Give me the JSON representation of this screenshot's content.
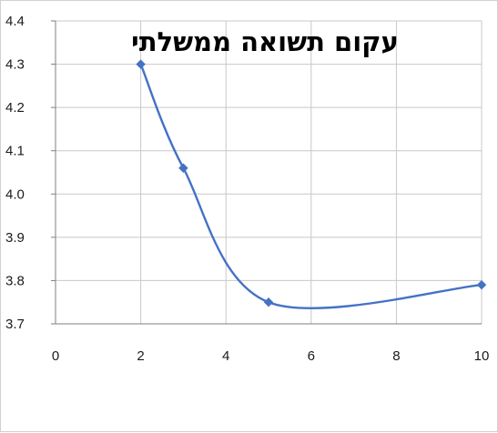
{
  "chart_data": {
    "type": "line",
    "title": "עקום תשואה ממשלתי",
    "xlabel": "",
    "ylabel": "",
    "xlim": [
      0,
      10
    ],
    "ylim": [
      3.7,
      4.4
    ],
    "x_ticks": [
      0,
      2,
      4,
      6,
      8,
      10
    ],
    "y_ticks": [
      3.7,
      3.8,
      3.9,
      4.0,
      4.1,
      4.2,
      4.3,
      4.4
    ],
    "y_tick_labels": [
      "3.7",
      "3.8",
      "3.9",
      "4.0",
      "4.1",
      "4.2",
      "4.3",
      "4.4"
    ],
    "grid": true,
    "smooth": true,
    "series": [
      {
        "x": [
          2,
          3,
          5,
          10
        ],
        "values": [
          4.3,
          4.06,
          3.75,
          3.79
        ],
        "color": "#4472c4"
      }
    ]
  }
}
